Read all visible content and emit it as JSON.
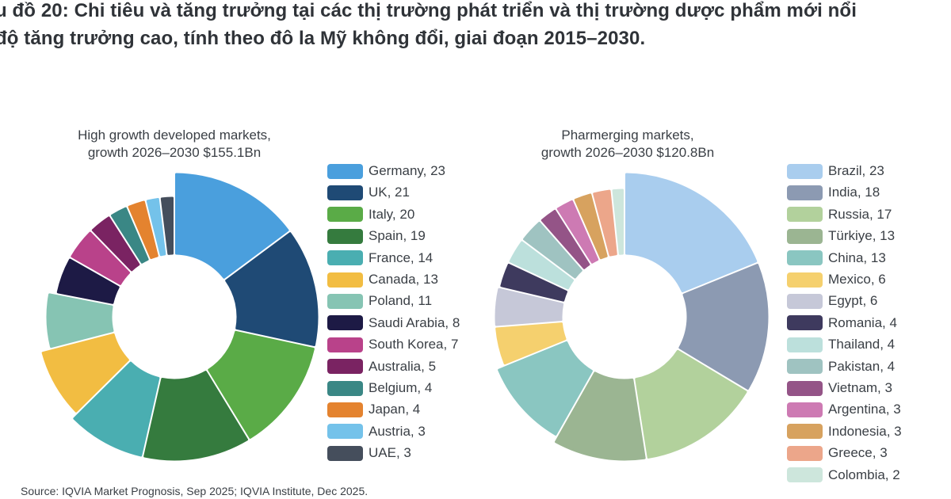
{
  "title": {
    "line1": "u đồ 20: Chi tiêu và tăng trưởng tại các thị trường phát triển và thị trường dược phẩm mới nổi",
    "line2": " độ tăng trưởng cao, tính theo đô la Mỹ không đổi, giai đoạn 2015–2030."
  },
  "source": "Source: IQVIA Market Prognosis, Sep 2025; IQVIA Institute, Dec 2025.",
  "chart_data": [
    {
      "type": "pie",
      "variant": "donut",
      "title_line1": "High growth developed markets,",
      "title_line2": "growth 2026–2030 $155.1Bn",
      "legend_position": "right",
      "slices": [
        {
          "name": "Germany",
          "value": 23,
          "label": "Germany, 23",
          "color": "#4a9fdd"
        },
        {
          "name": "UK",
          "value": 21,
          "label": "UK, 21",
          "color": "#1f4a75"
        },
        {
          "name": "Italy",
          "value": 20,
          "label": "Italy, 20",
          "color": "#5aab47"
        },
        {
          "name": "Spain",
          "value": 19,
          "label": "Spain, 19",
          "color": "#357b3e"
        },
        {
          "name": "France",
          "value": 14,
          "label": "France, 14",
          "color": "#4aaeb1"
        },
        {
          "name": "Canada",
          "value": 13,
          "label": "Canada, 13",
          "color": "#f2bd42"
        },
        {
          "name": "Poland",
          "value": 11,
          "label": "Poland, 11",
          "color": "#86c4b3"
        },
        {
          "name": "Saudi Arabia",
          "value": 8,
          "label": "Saudi Arabia, 8",
          "color": "#1d1a45"
        },
        {
          "name": "South Korea",
          "value": 7,
          "label": "South Korea, 7",
          "color": "#b9428a"
        },
        {
          "name": "Australia",
          "value": 5,
          "label": "Australia, 5",
          "color": "#7a2362"
        },
        {
          "name": "Belgium",
          "value": 4,
          "label": "Belgium, 4",
          "color": "#3a8785"
        },
        {
          "name": "Japan",
          "value": 4,
          "label": "Japan, 4",
          "color": "#e4832f"
        },
        {
          "name": "Austria",
          "value": 3,
          "label": "Austria, 3",
          "color": "#74c2ea"
        },
        {
          "name": "UAE",
          "value": 3,
          "label": "UAE, 3",
          "color": "#454e5c"
        }
      ]
    },
    {
      "type": "pie",
      "variant": "donut",
      "title_line1": "Pharmerging markets,",
      "title_line2": "growth 2026–2030 $120.8Bn",
      "legend_position": "right",
      "slices": [
        {
          "name": "Brazil",
          "value": 23,
          "label": "Brazil, 23",
          "color": "#a9cdee"
        },
        {
          "name": "India",
          "value": 18,
          "label": "India, 18",
          "color": "#8c9ab2"
        },
        {
          "name": "Russia",
          "value": 17,
          "label": "Russia, 17",
          "color": "#b2d19c"
        },
        {
          "name": "Türkiye",
          "value": 13,
          "label": "Türkiye, 13",
          "color": "#9bb592"
        },
        {
          "name": "China",
          "value": 13,
          "label": "China, 13",
          "color": "#8ac6c1"
        },
        {
          "name": "Mexico",
          "value": 6,
          "label": "Mexico, 6",
          "color": "#f5d06e"
        },
        {
          "name": "Egypt",
          "value": 6,
          "label": "Egypt, 6",
          "color": "#c6c8d8"
        },
        {
          "name": "Romania",
          "value": 4,
          "label": "Romania, 4",
          "color": "#3e3a5e"
        },
        {
          "name": "Thailand",
          "value": 4,
          "label": "Thailand, 4",
          "color": "#bce0dc"
        },
        {
          "name": "Pakistan",
          "value": 4,
          "label": "Pakistan, 4",
          "color": "#9fc3c1"
        },
        {
          "name": "Vietnam",
          "value": 3,
          "label": "Vietnam, 3",
          "color": "#945487"
        },
        {
          "name": "Argentina",
          "value": 3,
          "label": "Argentina, 3",
          "color": "#cd7ab3"
        },
        {
          "name": "Indonesia",
          "value": 3,
          "label": "Indonesia, 3",
          "color": "#d7a25f"
        },
        {
          "name": "Greece",
          "value": 3,
          "label": "Greece, 3",
          "color": "#eca68a"
        },
        {
          "name": "Colombia",
          "value": 2,
          "label": "Colombia, 2",
          "color": "#cde6dc"
        }
      ]
    }
  ]
}
